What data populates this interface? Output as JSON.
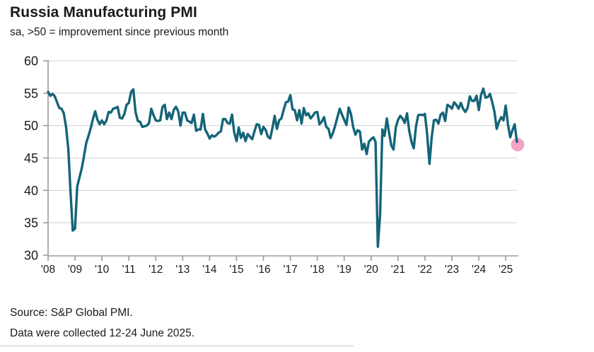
{
  "header": {
    "title": "Russia Manufacturing PMI",
    "subtitle": "sa, >50 = improvement since previous month"
  },
  "footer": {
    "source": "Source: S&P Global PMI.",
    "collection_note": "Data were collected 12-24 June 2025."
  },
  "colors": {
    "line": "#146478",
    "endpoint": "#f3a6c3",
    "grid": "#cfcfcf",
    "axis": "#9b9b9b",
    "text": "#1a1a1a"
  },
  "chart_data": {
    "type": "line",
    "title": "Russia Manufacturing PMI",
    "subtitle": "sa, >50 = improvement since previous month",
    "xlabel": "",
    "ylabel": "",
    "ylim": [
      30,
      60
    ],
    "yticks": [
      30,
      35,
      40,
      45,
      50,
      55,
      60
    ],
    "grid": true,
    "legend": "none",
    "x_start": "2008-01",
    "x_end": "2025-06",
    "xtick_labels": [
      "'08",
      "'09",
      "'10",
      "'11",
      "'12",
      "'13",
      "'14",
      "'15",
      "'16",
      "'17",
      "'18",
      "'19",
      "'20",
      "'21",
      "'22",
      "'23",
      "'24",
      "'25"
    ],
    "series": [
      {
        "name": "Russia Manufacturing PMI (sa)",
        "frequency": "monthly",
        "values_by_year": {
          "2008": [
            55.2,
            54.6,
            54.9,
            54.5,
            53.6,
            52.7,
            52.6,
            51.9,
            49.8,
            46.4,
            39.8,
            33.8
          ],
          "2009": [
            34.1,
            40.6,
            42.0,
            43.4,
            45.3,
            47.3,
            48.4,
            49.6,
            51.0,
            52.2,
            50.9,
            50.2
          ],
          "2010": [
            50.8,
            50.2,
            50.8,
            52.1,
            52.0,
            52.6,
            52.7,
            52.9,
            51.2,
            51.1,
            51.8,
            53.2
          ],
          "2011": [
            53.5,
            55.2,
            55.6,
            52.1,
            50.7,
            50.6,
            49.8,
            49.9,
            50.0,
            50.4,
            52.6,
            51.6
          ],
          "2012": [
            50.8,
            50.7,
            50.8,
            52.9,
            53.2,
            51.0,
            52.0,
            51.0,
            52.4,
            52.9,
            52.2,
            50.0
          ],
          "2013": [
            52.0,
            52.0,
            50.8,
            50.6,
            50.4,
            51.7,
            49.2,
            49.4,
            49.4,
            51.8,
            49.4,
            48.8
          ],
          "2014": [
            48.0,
            48.5,
            48.3,
            48.5,
            48.9,
            49.1,
            51.0,
            51.0,
            50.4,
            50.3,
            51.7,
            48.9
          ],
          "2015": [
            47.6,
            49.7,
            48.1,
            48.9,
            47.6,
            48.7,
            48.3,
            47.9,
            49.1,
            50.2,
            50.1,
            48.7
          ],
          "2016": [
            49.8,
            49.3,
            48.3,
            48.0,
            49.6,
            51.5,
            49.5,
            50.8,
            51.1,
            52.4,
            53.6,
            53.7
          ],
          "2017": [
            54.7,
            52.5,
            52.4,
            50.8,
            52.4,
            50.3,
            52.7,
            51.6,
            51.9,
            51.1,
            51.5,
            52.0
          ],
          "2018": [
            52.1,
            50.2,
            50.6,
            51.3,
            49.8,
            49.5,
            48.1,
            48.9,
            50.0,
            51.3,
            52.6,
            51.7
          ],
          "2019": [
            50.9,
            50.1,
            52.8,
            51.8,
            49.8,
            48.6,
            49.3,
            49.1,
            46.3,
            47.2,
            45.6,
            47.5
          ],
          "2020": [
            47.9,
            48.2,
            47.5,
            31.3,
            36.2,
            49.4,
            48.4,
            51.1,
            48.9,
            46.9,
            46.3,
            49.7
          ],
          "2021": [
            50.9,
            51.5,
            51.1,
            50.4,
            51.9,
            49.2,
            47.5,
            46.5,
            49.8,
            51.6,
            51.7,
            51.6
          ],
          "2022": [
            51.8,
            48.6,
            44.1,
            48.2,
            50.8,
            50.9,
            50.3,
            51.7,
            52.0,
            50.7,
            53.2,
            53.0
          ],
          "2023": [
            52.6,
            53.6,
            53.2,
            52.6,
            53.5,
            52.6,
            52.1,
            52.7,
            54.5,
            53.8,
            53.8,
            54.6
          ],
          "2024": [
            52.4,
            54.7,
            55.7,
            54.3,
            54.4,
            54.9,
            53.6,
            52.1,
            49.5,
            50.6,
            51.3,
            50.8
          ],
          "2025": [
            53.1,
            50.2,
            48.2,
            49.3,
            50.2,
            47.5
          ]
        }
      }
    ],
    "end_marker": {
      "x": "2025-06",
      "value": 47.5,
      "color": "#f3a6c3",
      "note": "latest data point highlighted"
    }
  }
}
